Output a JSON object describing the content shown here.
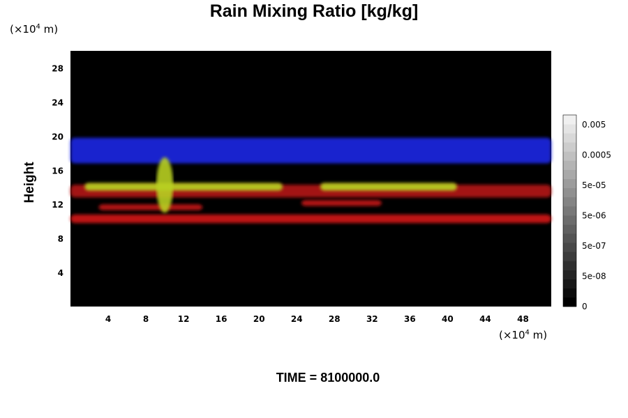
{
  "chart_data": {
    "type": "heatmap",
    "title": "Rain Mixing Ratio [kg/kg]",
    "ylabel": "Height",
    "x_unit": {
      "prefix": "(×10",
      "exp": "4",
      "suffix": " m)"
    },
    "y_unit": {
      "prefix": "(×10",
      "exp": "4",
      "suffix": " m)"
    },
    "xlim": [
      0,
      51
    ],
    "ylim": [
      0,
      30
    ],
    "x_ticks": [
      4,
      8,
      12,
      16,
      20,
      24,
      28,
      32,
      36,
      40,
      44,
      48
    ],
    "y_ticks": [
      4,
      8,
      12,
      16,
      20,
      24,
      28
    ],
    "colorbar": {
      "labels": [
        "0",
        "5e-08",
        "5e-07",
        "5e-06",
        "5e-05",
        "0.0005",
        "0.005"
      ],
      "levels": 21
    },
    "bands": [
      {
        "color": "#1a28e0",
        "y_min": 16.8,
        "y_max": 19.8,
        "x_min": 0,
        "x_max": 51
      },
      {
        "color": "#d01818",
        "y_min": 9.8,
        "y_max": 10.8,
        "x_min": 0,
        "x_max": 51
      },
      {
        "color": "#b01414",
        "y_min": 12.8,
        "y_max": 14.3,
        "x_min": 0,
        "x_max": 51
      },
      {
        "color": "#b8d020",
        "y_min": 13.6,
        "y_max": 14.5,
        "x_min": 1.5,
        "x_max": 22.5
      },
      {
        "color": "#b8d020",
        "y_min": 13.6,
        "y_max": 14.5,
        "x_min": 26.5,
        "x_max": 41
      },
      {
        "color": "#c01818",
        "y_min": 11.3,
        "y_max": 12.0,
        "x_min": 3,
        "x_max": 14
      },
      {
        "color": "#c01818",
        "y_min": 11.8,
        "y_max": 12.5,
        "x_min": 24.5,
        "x_max": 33
      }
    ],
    "plume": {
      "x": 10,
      "y_min": 11,
      "y_max": 17.5,
      "color": "#b8d020"
    }
  },
  "footer": {
    "time_label": "TIME = 8100000.0"
  }
}
